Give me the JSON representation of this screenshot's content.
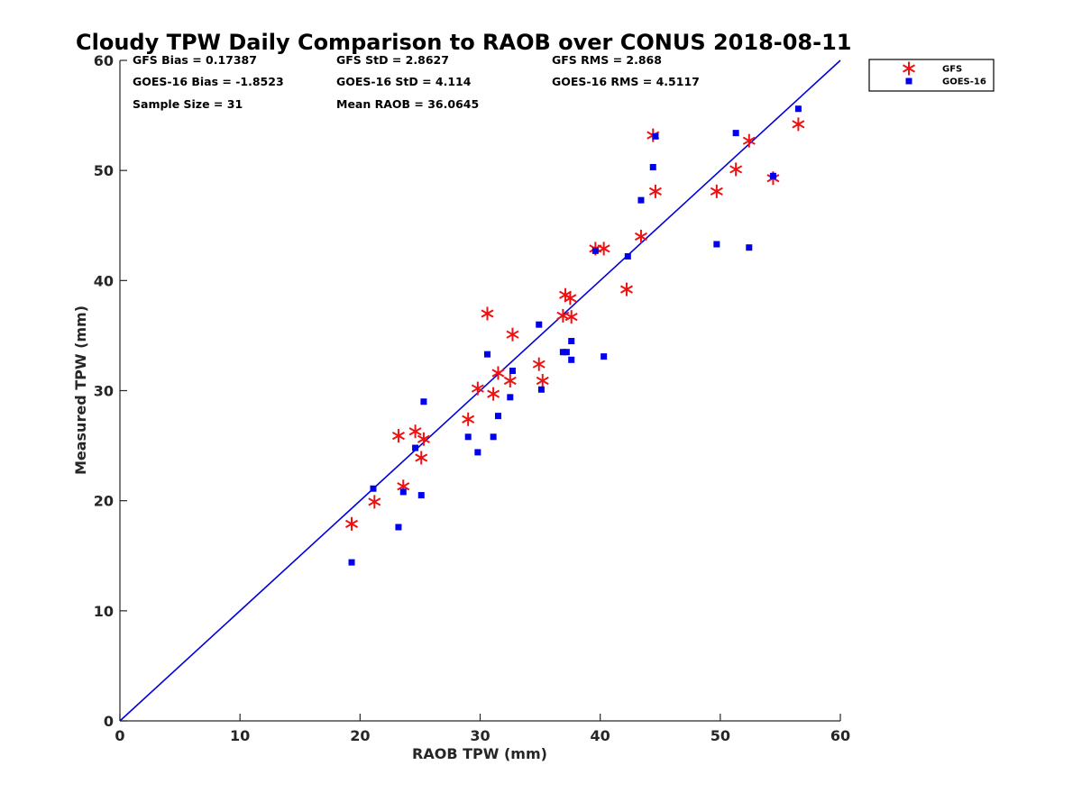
{
  "chart_data": {
    "type": "scatter",
    "title": "Cloudy TPW Daily Comparison to RAOB over CONUS 2018-08-11",
    "xlabel": "RAOB TPW (mm)",
    "ylabel": "Measured TPW (mm)",
    "xlim": [
      0,
      60
    ],
    "ylim": [
      0,
      60
    ],
    "xticks": [
      0,
      10,
      20,
      30,
      40,
      50,
      60
    ],
    "yticks": [
      0,
      10,
      20,
      30,
      40,
      50,
      60
    ],
    "grid": false,
    "legend_position": "outside-top-right",
    "reference_line": {
      "x": [
        0,
        60
      ],
      "y": [
        0,
        60
      ],
      "color": "#0000dd"
    },
    "stats": [
      {
        "text": "GFS Bias = 0.17387",
        "col": 0,
        "row": 0
      },
      {
        "text": "GFS StD = 2.8627",
        "col": 1,
        "row": 0
      },
      {
        "text": "GFS RMS = 2.868",
        "col": 2,
        "row": 0
      },
      {
        "text": "GOES-16 Bias = -1.8523",
        "col": 0,
        "row": 1
      },
      {
        "text": "GOES-16 StD = 4.114",
        "col": 1,
        "row": 1
      },
      {
        "text": "GOES-16 RMS = 4.5117",
        "col": 2,
        "row": 1
      },
      {
        "text": "Sample Size = 31",
        "col": 0,
        "row": 2
      },
      {
        "text": "Mean RAOB = 36.0645",
        "col": 1,
        "row": 2
      }
    ],
    "series": [
      {
        "name": "GFS",
        "marker": "asterisk",
        "color": "#ee1111",
        "x": [
          19.3,
          21.2,
          23.2,
          23.6,
          24.6,
          25.1,
          25.3,
          29.0,
          29.8,
          30.6,
          31.1,
          31.5,
          32.5,
          32.7,
          34.9,
          35.2,
          36.9,
          37.1,
          37.5,
          37.6,
          39.6,
          40.3,
          42.2,
          43.4,
          44.4,
          44.6,
          49.7,
          51.3,
          52.4,
          54.4,
          56.5
        ],
        "y": [
          17.9,
          19.9,
          25.9,
          21.3,
          26.3,
          23.9,
          25.6,
          27.4,
          30.2,
          37.0,
          29.7,
          31.6,
          30.9,
          35.1,
          32.4,
          30.9,
          36.8,
          38.7,
          38.4,
          36.7,
          42.9,
          42.9,
          39.2,
          44.0,
          53.2,
          48.1,
          48.1,
          50.1,
          52.7,
          49.3,
          54.2
        ]
      },
      {
        "name": "GOES-16",
        "marker": "square",
        "color": "#0000ee",
        "x": [
          19.3,
          21.1,
          23.2,
          23.6,
          24.6,
          25.1,
          25.3,
          29.0,
          29.8,
          30.6,
          31.1,
          31.5,
          32.5,
          32.7,
          34.9,
          35.1,
          36.9,
          37.2,
          37.6,
          37.6,
          39.6,
          40.3,
          42.3,
          43.4,
          44.4,
          44.6,
          49.7,
          51.3,
          52.4,
          54.4,
          56.5
        ],
        "y": [
          14.4,
          21.1,
          17.6,
          20.8,
          24.8,
          20.5,
          29.0,
          25.8,
          24.4,
          33.3,
          25.8,
          27.7,
          29.4,
          31.8,
          36.0,
          30.1,
          33.5,
          33.5,
          34.5,
          32.8,
          42.7,
          33.1,
          42.2,
          47.3,
          50.3,
          53.1,
          43.3,
          53.4,
          43.0,
          49.5,
          55.6
        ]
      }
    ]
  }
}
